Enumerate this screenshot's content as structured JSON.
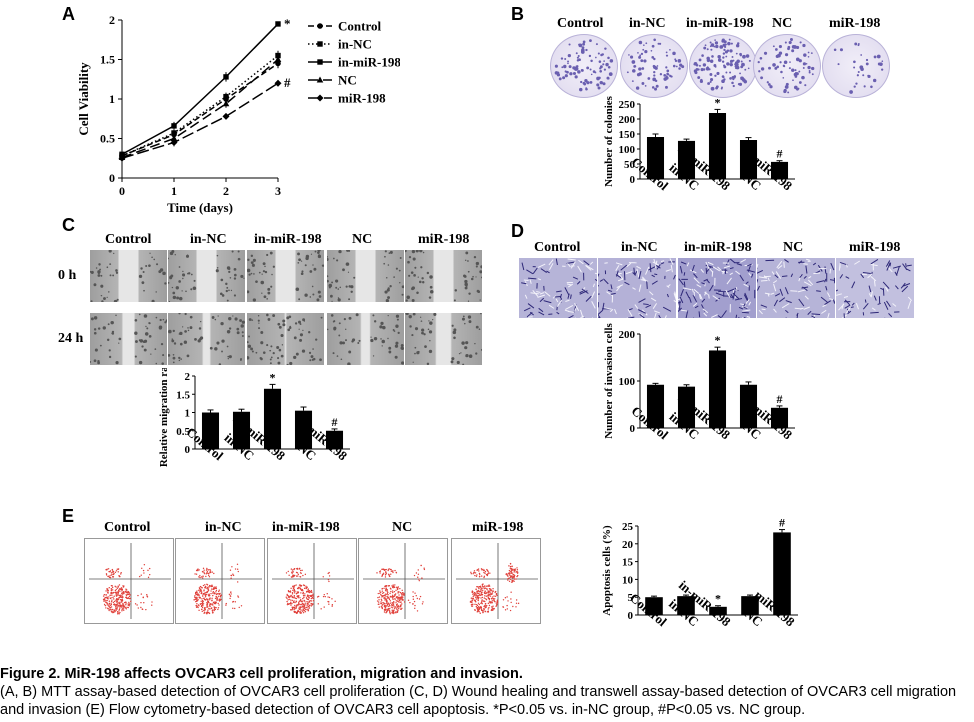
{
  "panels": {
    "a": "A",
    "b": "B",
    "c": "C",
    "d": "D",
    "e": "E"
  },
  "groups": [
    "Control",
    "in-NC",
    "in-miR-198",
    "NC",
    "miR-198"
  ],
  "times": {
    "h0": "0 h",
    "h24": "24 h"
  },
  "colors": {
    "colony": "#6a5fb0",
    "wound": "#a9a9a9",
    "transwell": "#5b55a8",
    "flow_dots": "#e0403a",
    "bars": "#000000"
  },
  "chart_data": [
    {
      "id": "A",
      "type": "line",
      "title": "",
      "xlabel": "Time (days)",
      "ylabel": "Cell Viability",
      "xlim": [
        0,
        3
      ],
      "ylim": [
        0,
        2
      ],
      "xticks": [
        0,
        1,
        2,
        3
      ],
      "yticks": [
        0,
        0.5,
        1,
        1.5,
        2
      ],
      "x": [
        0,
        1,
        2,
        3
      ],
      "series": [
        {
          "name": "Control",
          "values": [
            0.28,
            0.55,
            1.0,
            1.45
          ],
          "err": [
            0.02,
            0.04,
            0.05,
            0.06
          ],
          "dash": "6,3",
          "marker": "circle"
        },
        {
          "name": "in-NC",
          "values": [
            0.28,
            0.57,
            1.03,
            1.55
          ],
          "err": [
            0.02,
            0.04,
            0.05,
            0.06
          ],
          "dash": "1.5,2.5",
          "marker": "square"
        },
        {
          "name": "in-miR-198",
          "values": [
            0.3,
            0.66,
            1.28,
            1.95
          ],
          "err": [
            0.02,
            0.05,
            0.06,
            0.03
          ],
          "dash": "",
          "marker": "square"
        },
        {
          "name": "NC",
          "values": [
            0.26,
            0.5,
            0.94,
            1.5
          ],
          "err": [
            0.02,
            0.04,
            0.05,
            0.06
          ],
          "dash": "10,5",
          "marker": "triangle"
        },
        {
          "name": "miR-198",
          "values": [
            0.25,
            0.45,
            0.78,
            1.2
          ],
          "err": [
            0.02,
            0.05,
            0.03,
            0.04
          ],
          "dash": "12,4",
          "marker": "diamond"
        }
      ],
      "annotations": [
        {
          "series": "in-miR-198",
          "x": 3,
          "text": "*"
        },
        {
          "series": "miR-198",
          "x": 3,
          "text": "#"
        }
      ]
    },
    {
      "id": "B",
      "type": "bar",
      "ylabel": "Number of colonies",
      "ylim": [
        0,
        250
      ],
      "yticks": [
        0,
        50,
        100,
        150,
        200,
        250
      ],
      "categories": [
        "Control",
        "in-NC",
        "in-miR-198",
        "NC",
        "miR-198"
      ],
      "values": [
        140,
        127,
        220,
        130,
        57
      ],
      "err": [
        10,
        6,
        12,
        8,
        4
      ],
      "annotations": [
        "",
        "",
        "*",
        "",
        "#"
      ]
    },
    {
      "id": "C",
      "type": "bar",
      "ylabel": "Relative migration rate",
      "ylim": [
        0,
        2
      ],
      "yticks": [
        0,
        0.5,
        1,
        1.5,
        2
      ],
      "categories": [
        "Control",
        "in-NC",
        "in-miR-198",
        "NC",
        "miR-198"
      ],
      "values": [
        1.0,
        1.02,
        1.65,
        1.05,
        0.5
      ],
      "err": [
        0.07,
        0.07,
        0.12,
        0.1,
        0.05
      ],
      "annotations": [
        "",
        "",
        "*",
        "",
        "#"
      ]
    },
    {
      "id": "D",
      "type": "bar",
      "ylabel": "Number of invasion cells",
      "ylim": [
        0,
        200
      ],
      "yticks": [
        0,
        100,
        200
      ],
      "categories": [
        "Control",
        "in-NC",
        "in-miR-198",
        "NC",
        "miR-198"
      ],
      "values": [
        92,
        88,
        165,
        92,
        43
      ],
      "err": [
        3,
        4,
        7,
        6,
        4
      ],
      "annotations": [
        "",
        "",
        "*",
        "",
        "#"
      ]
    },
    {
      "id": "E",
      "type": "bar",
      "ylabel": "Apoptosis cells (%)",
      "ylim": [
        0,
        25
      ],
      "yticks": [
        0,
        5,
        10,
        15,
        20,
        25
      ],
      "categories": [
        "Control",
        "in-NC",
        "in-miR-198",
        "NC",
        "miR-198"
      ],
      "values": [
        5,
        5.3,
        2.3,
        5.3,
        23.2
      ],
      "err": [
        0.3,
        0.3,
        0.3,
        0.3,
        0.8
      ],
      "annotations": [
        "",
        "",
        "*",
        "",
        "#"
      ]
    }
  ],
  "caption": {
    "title": "Figure 2. MiR-198 affects OVCAR3 cell proliferation, migration and invasion.",
    "body": "(A, B) MTT assay-based detection of OVCAR3 cell proliferation (C, D) Wound healing and transwell assay-based detection of OVCAR3 cell migration and invasion (E) Flow cytometry-based detection of OVCAR3 cell apoptosis. *P<0.05 vs. in-NC group, #P<0.05 vs. NC group."
  }
}
